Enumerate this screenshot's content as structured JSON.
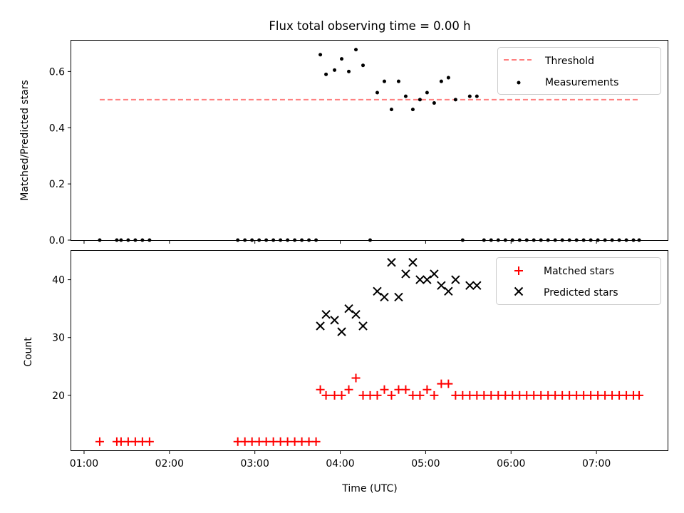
{
  "chart_data": [
    {
      "type": "scatter",
      "title": "Flux total observing time = 0.00 h",
      "xlabel": "",
      "ylabel": "Matched/Predicted stars",
      "xlim": [
        "00:51",
        "07:50"
      ],
      "ylim": [
        0,
        0.71
      ],
      "y_ticks": [
        0.0,
        0.2,
        0.4,
        0.6
      ],
      "y_tick_labels": [
        "0.0",
        "0.2",
        "0.4",
        "0.6"
      ],
      "grid": false,
      "legend_position": "top-right",
      "threshold": {
        "name": "Threshold",
        "value": 0.5,
        "x_range": [
          "01:11",
          "07:30"
        ],
        "color": "#ff7f7f",
        "style": "dashed"
      },
      "series": [
        {
          "name": "Measurements",
          "color": "#000000",
          "marker": "dot",
          "points": [
            [
              "01:11",
              0.0
            ],
            [
              "01:23",
              0.0
            ],
            [
              "01:26",
              0.0
            ],
            [
              "01:31",
              0.0
            ],
            [
              "01:36",
              0.0
            ],
            [
              "01:41",
              0.0
            ],
            [
              "01:46",
              0.0
            ],
            [
              "02:48",
              0.0
            ],
            [
              "02:53",
              0.0
            ],
            [
              "02:58",
              0.0
            ],
            [
              "03:03",
              0.0
            ],
            [
              "03:08",
              0.0
            ],
            [
              "03:13",
              0.0
            ],
            [
              "03:18",
              0.0
            ],
            [
              "03:23",
              0.0
            ],
            [
              "03:28",
              0.0
            ],
            [
              "03:33",
              0.0
            ],
            [
              "03:38",
              0.0
            ],
            [
              "03:43",
              0.0
            ],
            [
              "03:46",
              0.66
            ],
            [
              "03:50",
              0.59
            ],
            [
              "03:56",
              0.605
            ],
            [
              "04:01",
              0.645
            ],
            [
              "04:06",
              0.6
            ],
            [
              "04:11",
              0.678
            ],
            [
              "04:16",
              0.622
            ],
            [
              "04:21",
              0.0
            ],
            [
              "04:26",
              0.525
            ],
            [
              "04:31",
              0.565
            ],
            [
              "04:36",
              0.465
            ],
            [
              "04:41",
              0.565
            ],
            [
              "04:46",
              0.512
            ],
            [
              "04:51",
              0.465
            ],
            [
              "04:56",
              0.5
            ],
            [
              "05:01",
              0.525
            ],
            [
              "05:06",
              0.488
            ],
            [
              "05:11",
              0.565
            ],
            [
              "05:16",
              0.578
            ],
            [
              "05:21",
              0.5
            ],
            [
              "05:26",
              0.0
            ],
            [
              "05:31",
              0.512
            ],
            [
              "05:36",
              0.512
            ],
            [
              "05:41",
              0.0
            ],
            [
              "05:46",
              0.0
            ],
            [
              "05:51",
              0.0
            ],
            [
              "05:56",
              0.0
            ],
            [
              "06:01",
              0.0
            ],
            [
              "06:06",
              0.0
            ],
            [
              "06:11",
              0.0
            ],
            [
              "06:16",
              0.0
            ],
            [
              "06:21",
              0.0
            ],
            [
              "06:26",
              0.0
            ],
            [
              "06:31",
              0.0
            ],
            [
              "06:36",
              0.0
            ],
            [
              "06:41",
              0.0
            ],
            [
              "06:46",
              0.0
            ],
            [
              "06:51",
              0.0
            ],
            [
              "06:56",
              0.0
            ],
            [
              "07:01",
              0.0
            ],
            [
              "07:06",
              0.0
            ],
            [
              "07:11",
              0.0
            ],
            [
              "07:16",
              0.0
            ],
            [
              "07:21",
              0.0
            ],
            [
              "07:26",
              0.0
            ],
            [
              "07:30",
              0.0
            ]
          ]
        }
      ]
    },
    {
      "type": "scatter",
      "title": "",
      "xlabel": "Time (UTC)",
      "ylabel": "Count",
      "xlim": [
        "00:51",
        "07:50"
      ],
      "ylim": [
        10.5,
        45
      ],
      "x_tick_labels": [
        "01:00",
        "02:00",
        "03:00",
        "04:00",
        "05:00",
        "06:00",
        "07:00"
      ],
      "y_ticks": [
        20,
        30,
        40
      ],
      "y_tick_labels": [
        "20",
        "30",
        "40"
      ],
      "grid": false,
      "legend_position": "top-right",
      "series": [
        {
          "name": "Matched stars",
          "color": "#ff0000",
          "marker": "plus",
          "points": [
            [
              "01:11",
              12
            ],
            [
              "01:23",
              12
            ],
            [
              "01:26",
              12
            ],
            [
              "01:31",
              12
            ],
            [
              "01:36",
              12
            ],
            [
              "01:41",
              12
            ],
            [
              "01:46",
              12
            ],
            [
              "02:48",
              12
            ],
            [
              "02:53",
              12
            ],
            [
              "02:58",
              12
            ],
            [
              "03:03",
              12
            ],
            [
              "03:08",
              12
            ],
            [
              "03:13",
              12
            ],
            [
              "03:18",
              12
            ],
            [
              "03:23",
              12
            ],
            [
              "03:28",
              12
            ],
            [
              "03:33",
              12
            ],
            [
              "03:38",
              12
            ],
            [
              "03:43",
              12
            ],
            [
              "03:46",
              21
            ],
            [
              "03:50",
              20
            ],
            [
              "03:56",
              20
            ],
            [
              "04:01",
              20
            ],
            [
              "04:06",
              21
            ],
            [
              "04:11",
              23
            ],
            [
              "04:16",
              20
            ],
            [
              "04:21",
              20
            ],
            [
              "04:26",
              20
            ],
            [
              "04:31",
              21
            ],
            [
              "04:36",
              20
            ],
            [
              "04:41",
              21
            ],
            [
              "04:46",
              21
            ],
            [
              "04:51",
              20
            ],
            [
              "04:56",
              20
            ],
            [
              "05:01",
              21
            ],
            [
              "05:06",
              20
            ],
            [
              "05:11",
              22
            ],
            [
              "05:16",
              22
            ],
            [
              "05:21",
              20
            ],
            [
              "05:26",
              20
            ],
            [
              "05:31",
              20
            ],
            [
              "05:36",
              20
            ],
            [
              "05:41",
              20
            ],
            [
              "05:46",
              20
            ],
            [
              "05:51",
              20
            ],
            [
              "05:56",
              20
            ],
            [
              "06:01",
              20
            ],
            [
              "06:06",
              20
            ],
            [
              "06:11",
              20
            ],
            [
              "06:16",
              20
            ],
            [
              "06:21",
              20
            ],
            [
              "06:26",
              20
            ],
            [
              "06:31",
              20
            ],
            [
              "06:36",
              20
            ],
            [
              "06:41",
              20
            ],
            [
              "06:46",
              20
            ],
            [
              "06:51",
              20
            ],
            [
              "06:56",
              20
            ],
            [
              "07:01",
              20
            ],
            [
              "07:06",
              20
            ],
            [
              "07:11",
              20
            ],
            [
              "07:16",
              20
            ],
            [
              "07:21",
              20
            ],
            [
              "07:26",
              20
            ],
            [
              "07:30",
              20
            ]
          ]
        },
        {
          "name": "Predicted stars",
          "color": "#000000",
          "marker": "x",
          "points": [
            [
              "03:46",
              32
            ],
            [
              "03:50",
              34
            ],
            [
              "03:56",
              33
            ],
            [
              "04:01",
              31
            ],
            [
              "04:06",
              35
            ],
            [
              "04:11",
              34
            ],
            [
              "04:16",
              32
            ],
            [
              "04:26",
              38
            ],
            [
              "04:31",
              37
            ],
            [
              "04:36",
              43
            ],
            [
              "04:41",
              37
            ],
            [
              "04:46",
              41
            ],
            [
              "04:51",
              43
            ],
            [
              "04:56",
              40
            ],
            [
              "05:01",
              40
            ],
            [
              "05:06",
              41
            ],
            [
              "05:11",
              39
            ],
            [
              "05:16",
              38
            ],
            [
              "05:21",
              40
            ],
            [
              "05:31",
              39
            ],
            [
              "05:36",
              39
            ]
          ]
        }
      ]
    }
  ]
}
